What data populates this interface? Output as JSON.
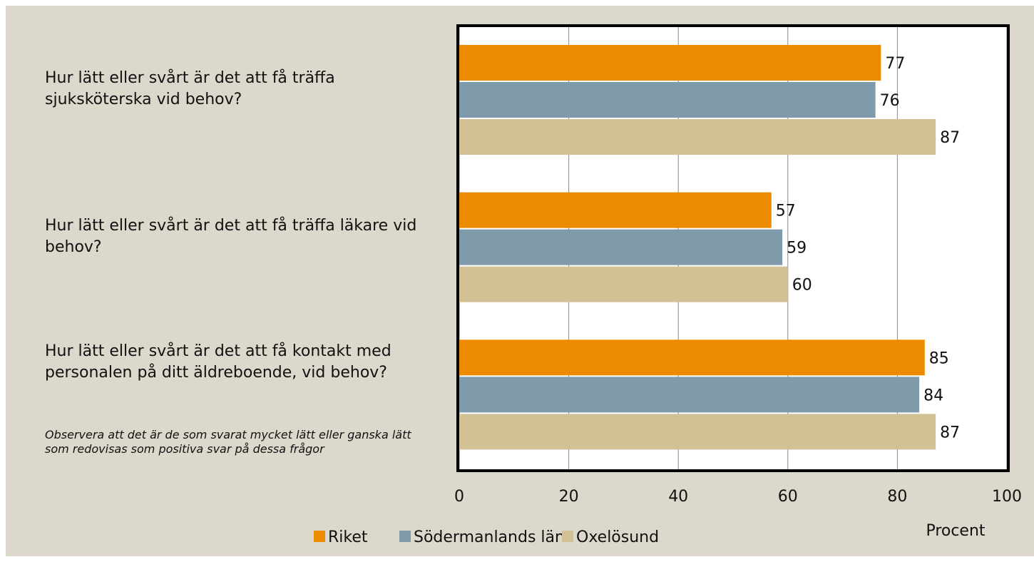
{
  "chart_data": {
    "type": "barh",
    "categories": [
      "Hur lätt eller svårt är det att få träffa sjuksköterska vid behov?",
      "Hur lätt eller svårt är det att få träffa läkare vid behov?",
      "Hur lätt eller svårt är det att få kontakt med personalen på ditt äldreboende, vid behov?"
    ],
    "series": [
      {
        "name": "Riket",
        "color": "#ed8b00",
        "values": [
          77,
          57,
          85
        ]
      },
      {
        "name": "Södermanlands län",
        "color": "#7f9bab",
        "values": [
          76,
          59,
          84
        ]
      },
      {
        "name": "Oxelösund",
        "color": "#d3c196",
        "values": [
          87,
          60,
          87
        ]
      }
    ],
    "xlim": [
      0,
      100
    ],
    "xticks": [
      0,
      20,
      40,
      60,
      80,
      100
    ],
    "grid": true,
    "xlabel": "Procent",
    "note": "Observera att det är de som svarat mycket lätt eller ganska lätt som redovisas som positiva svar på dessa frågor",
    "legend": "bottom"
  }
}
